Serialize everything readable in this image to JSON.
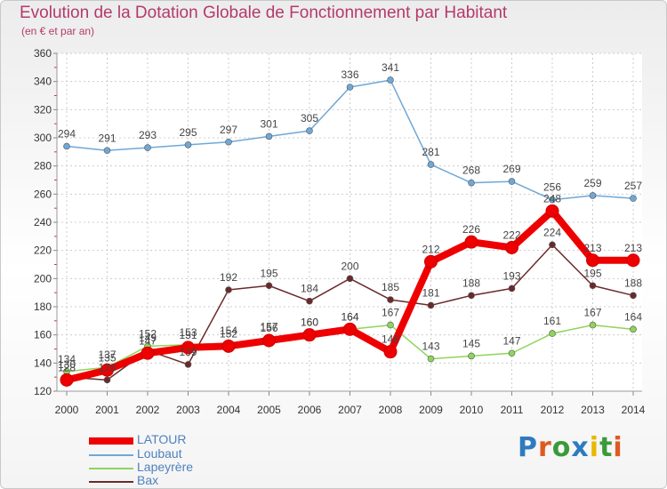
{
  "title": "Evolution de la Dotation Globale de Fonctionnement par Habitant",
  "subtitle": "(en € et par an)",
  "logo": {
    "text": "Proxiti",
    "colors": [
      "#2e7bbf",
      "#e05a1f",
      "#3a9a3a",
      "#2e7bbf",
      "#e8b800",
      "#3a9a3a",
      "#e05a1f"
    ]
  },
  "chart_data": {
    "type": "line",
    "title": "Evolution de la Dotation Globale de Fonctionnement par Habitant",
    "subtitle": "(en € et par an)",
    "x": [
      "2000",
      "2001",
      "2002",
      "2003",
      "2004",
      "2005",
      "2006",
      "2007",
      "2008",
      "2009",
      "2010",
      "2011",
      "2012",
      "2013",
      "2014"
    ],
    "ylim": [
      120,
      360
    ],
    "yticks": [
      120,
      140,
      160,
      180,
      200,
      220,
      240,
      260,
      280,
      300,
      320,
      340,
      360
    ],
    "grid": true,
    "legend_position": "bottom-left",
    "series": [
      {
        "name": "Loubaut",
        "color": "#6fa8d6",
        "values": [
          294,
          291,
          293,
          295,
          297,
          301,
          305,
          336,
          341,
          281,
          268,
          269,
          256,
          259,
          257
        ]
      },
      {
        "name": "Lapeyrère",
        "color": "#8fd45a",
        "values": [
          134,
          137,
          152,
          153,
          154,
          157,
          160,
          164,
          167,
          143,
          145,
          147,
          161,
          167,
          164
        ]
      },
      {
        "name": "Bax",
        "color": "#6b2a2a",
        "values": [
          130,
          128,
          149,
          139,
          192,
          195,
          184,
          200,
          185,
          181,
          188,
          193,
          224,
          195,
          188
        ]
      },
      {
        "name": "LATOUR",
        "color": "#ee0000",
        "values": [
          128,
          135,
          147,
          151,
          152,
          156,
          160,
          164,
          148,
          212,
          226,
          222,
          248,
          213,
          213
        ]
      }
    ],
    "legend": [
      "LATOUR",
      "Loubaut",
      "Lapeyrère",
      "Bax"
    ]
  }
}
